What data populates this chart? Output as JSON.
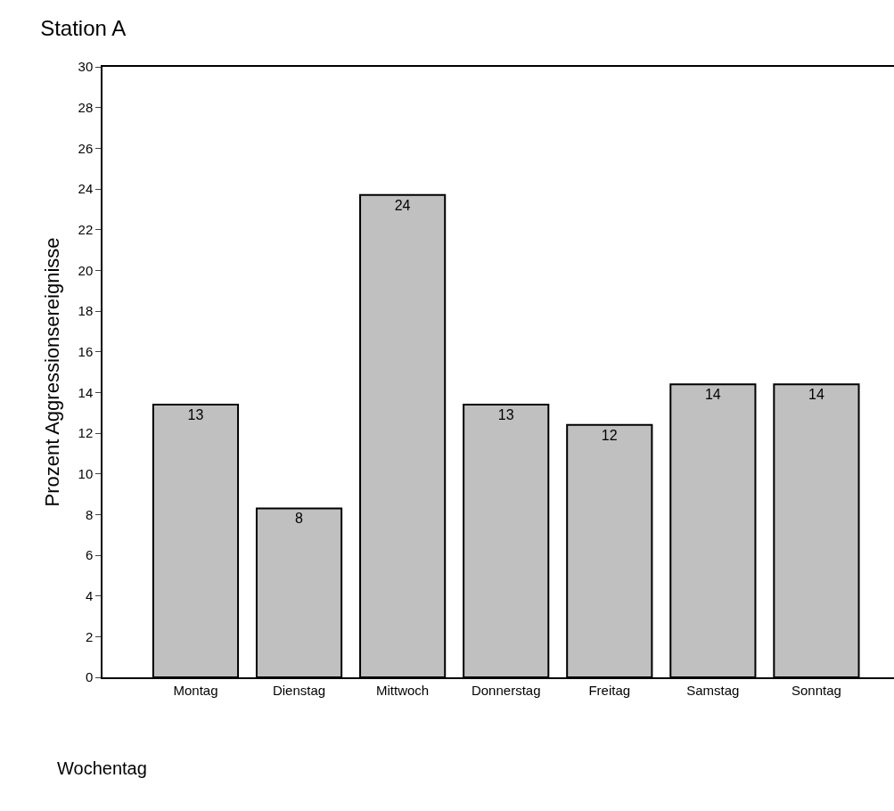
{
  "chart_data": {
    "type": "bar",
    "title": "Station A",
    "xlabel": "Wochentag",
    "ylabel": "Prozent Aggressionsereignisse",
    "categories": [
      "Montag",
      "Dienstag",
      "Mittwoch",
      "Donnerstag",
      "Freitag",
      "Samstag",
      "Sonntag"
    ],
    "values": [
      13.4,
      8.3,
      23.7,
      13.4,
      12.4,
      14.4,
      14.4
    ],
    "value_labels": [
      "13",
      "8",
      "24",
      "13",
      "12",
      "14",
      "14"
    ],
    "color": "#c0c0c0",
    "ylim": [
      0,
      30
    ],
    "yticks": [
      0,
      2,
      4,
      6,
      8,
      10,
      12,
      14,
      16,
      18,
      20,
      22,
      24,
      26,
      28,
      30
    ]
  }
}
